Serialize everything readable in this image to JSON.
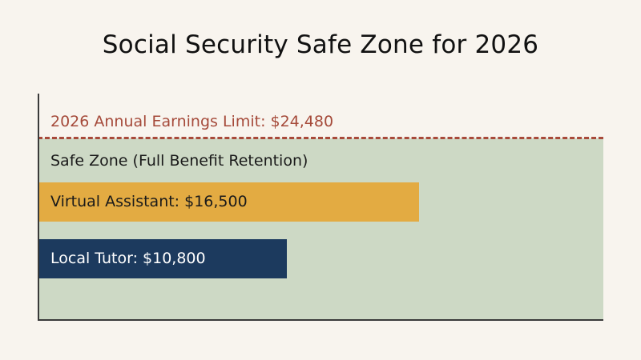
{
  "chart_data": {
    "type": "bar",
    "orientation": "horizontal",
    "title": "Social Security Safe Zone for 2026",
    "xlim": [
      0,
      24480
    ],
    "reference_line": {
      "label": "2026 Annual Earnings Limit: $24,480",
      "value": 24480,
      "color": "#a84a3a"
    },
    "zone": {
      "label": "Safe Zone (Full Benefit Retention)",
      "from": 0,
      "to": 24480,
      "color": "#cdd9c5"
    },
    "bars": [
      {
        "label": "Virtual Assistant: $16,500",
        "value": 16500,
        "color": "#e3ab42",
        "text_color": "#1a1a1a"
      },
      {
        "label": "Local Tutor: $10,800",
        "value": 10800,
        "color": "#1c3a5e",
        "text_color": "#ffffff"
      }
    ],
    "grid": false
  }
}
